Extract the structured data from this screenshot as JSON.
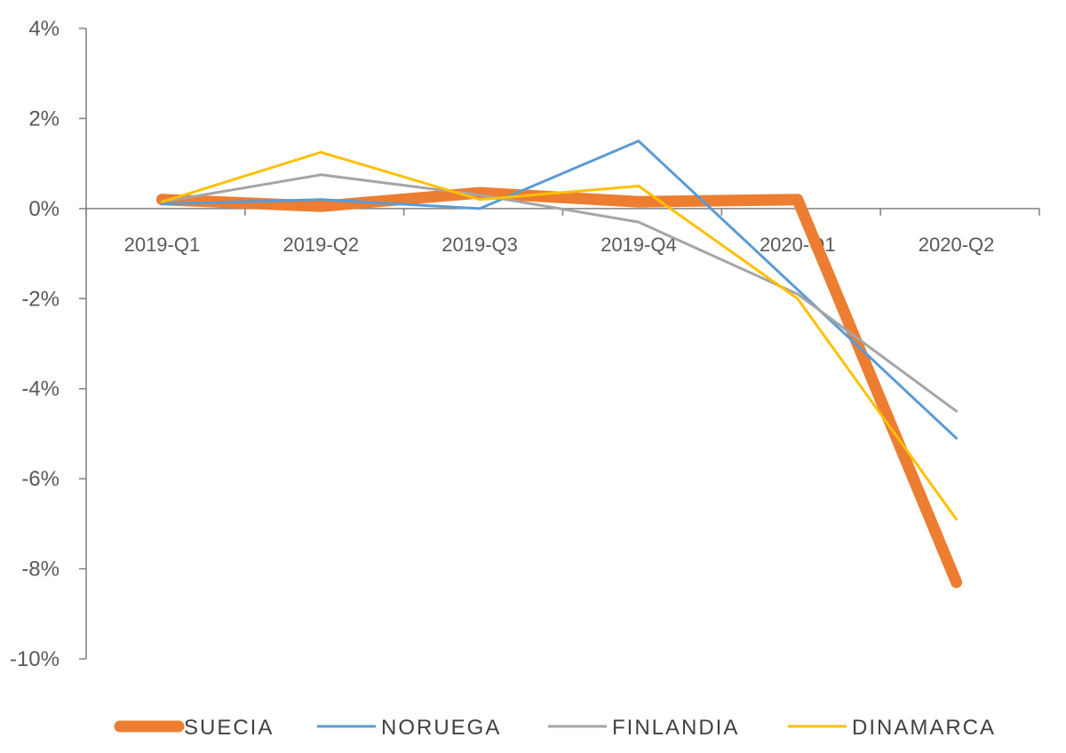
{
  "chart_data": {
    "type": "line",
    "categories": [
      "2019-Q1",
      "2019-Q2",
      "2019-Q3",
      "2019-Q4",
      "2020-Q1",
      "2020-Q2"
    ],
    "ylim": [
      -10,
      4
    ],
    "yticks": [
      4,
      2,
      0,
      -2,
      -4,
      -6,
      -8,
      -10
    ],
    "ytick_labels": [
      "4%",
      "2%",
      "0%",
      "-2%",
      "-4%",
      "-6%",
      "-8%",
      "-10%"
    ],
    "grid": false,
    "legend_position": "bottom",
    "series": [
      {
        "name": "SUECIA",
        "color": "#ED7D31",
        "emphasis": "thick",
        "values": [
          0.2,
          0.05,
          0.35,
          0.15,
          0.2,
          -8.3
        ]
      },
      {
        "name": "NORUEGA",
        "color": "#5B9BD5",
        "values": [
          0.1,
          0.2,
          0.0,
          1.5,
          -1.8,
          -5.1
        ]
      },
      {
        "name": "FINLANDIA",
        "color": "#A5A5A5",
        "values": [
          0.15,
          0.75,
          0.3,
          -0.3,
          -1.9,
          -4.5
        ]
      },
      {
        "name": "DINAMARCA",
        "color": "#FFC000",
        "values": [
          0.15,
          1.25,
          0.2,
          0.5,
          -2.0,
          -6.9
        ]
      }
    ]
  }
}
